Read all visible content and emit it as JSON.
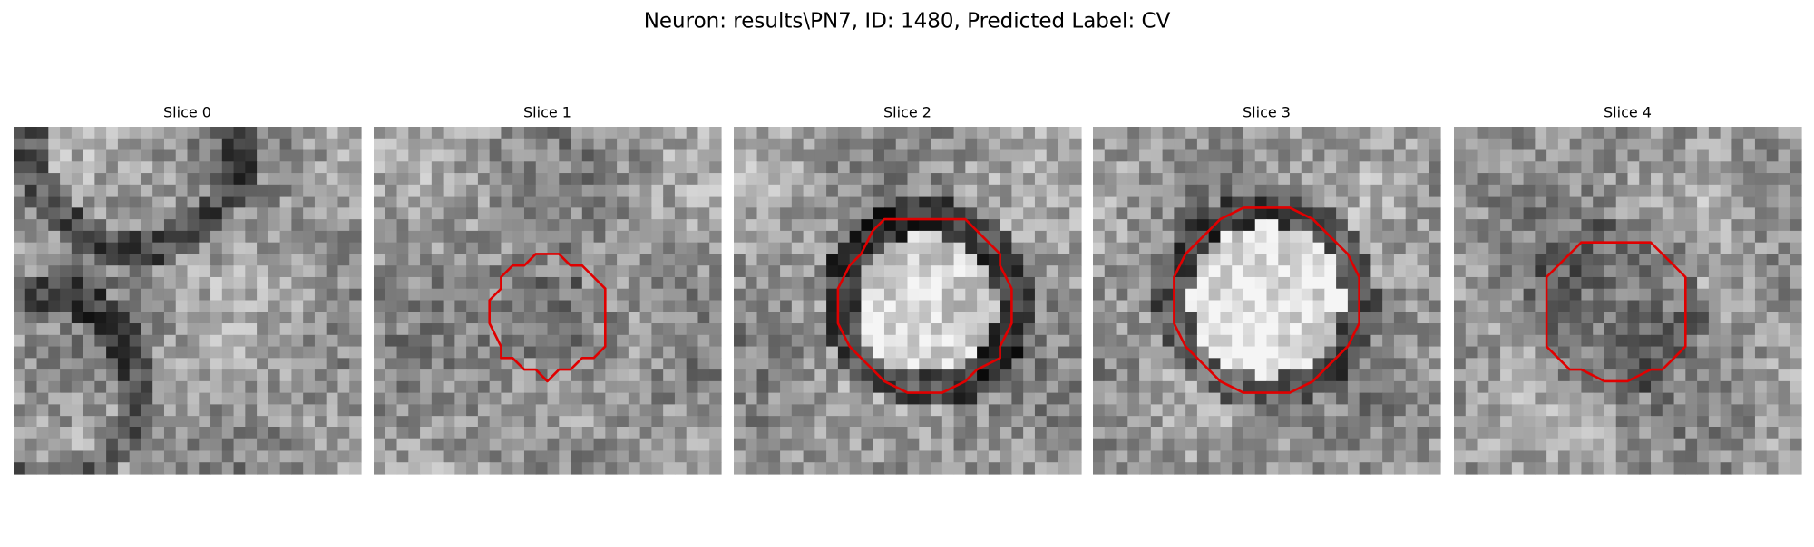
{
  "title": "Neuron: results\\PN7, ID: 1480, Predicted Label: CV",
  "panels": [
    {
      "title": "Slice 0"
    },
    {
      "title": "Slice 1"
    },
    {
      "title": "Slice 2"
    },
    {
      "title": "Slice 3"
    },
    {
      "title": "Slice 4"
    }
  ]
}
